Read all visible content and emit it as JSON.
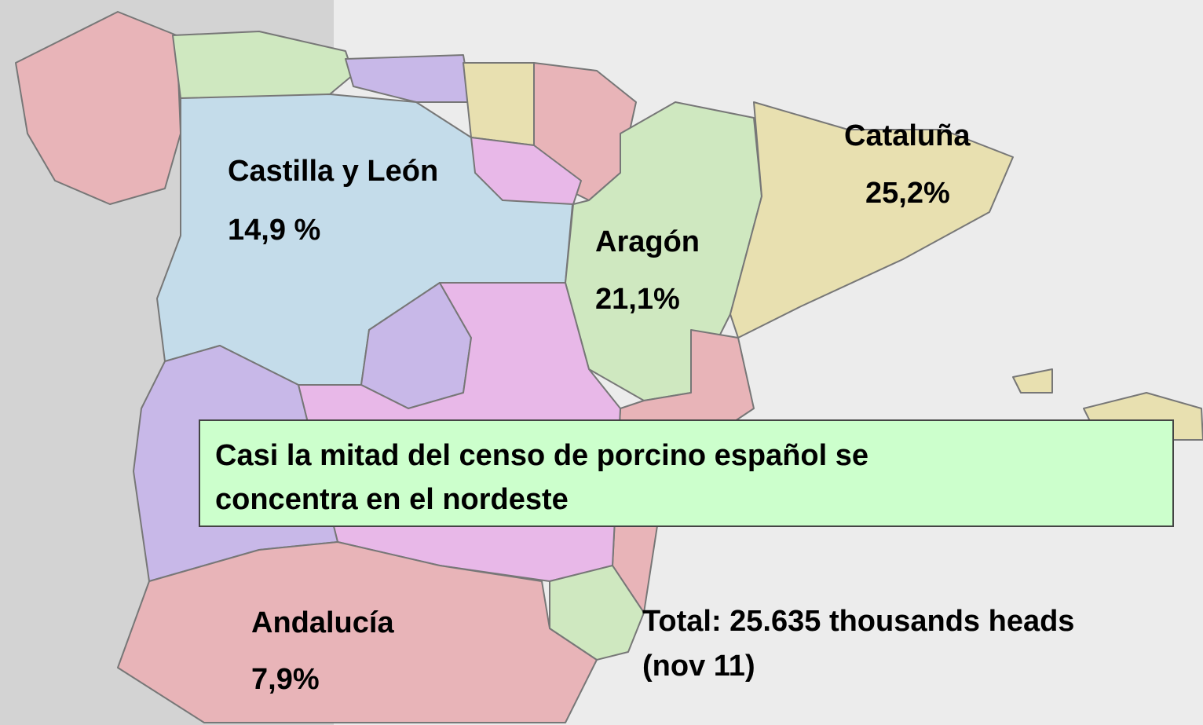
{
  "map": {
    "regions": [
      {
        "name": "Castilla y León",
        "share": "14,9 %"
      },
      {
        "name": "Aragón",
        "share": "21,1%"
      },
      {
        "name": "Cataluña",
        "share": "25,2%"
      },
      {
        "name": "Andalucía",
        "share": "7,9%"
      }
    ],
    "note": {
      "lines": [
        "Casi la mitad del censo de porcino español se",
        "concentra en el nordeste"
      ]
    },
    "total": {
      "lines": [
        "Total: 25.635 thousands heads",
        "(nov 11)"
      ]
    }
  }
}
